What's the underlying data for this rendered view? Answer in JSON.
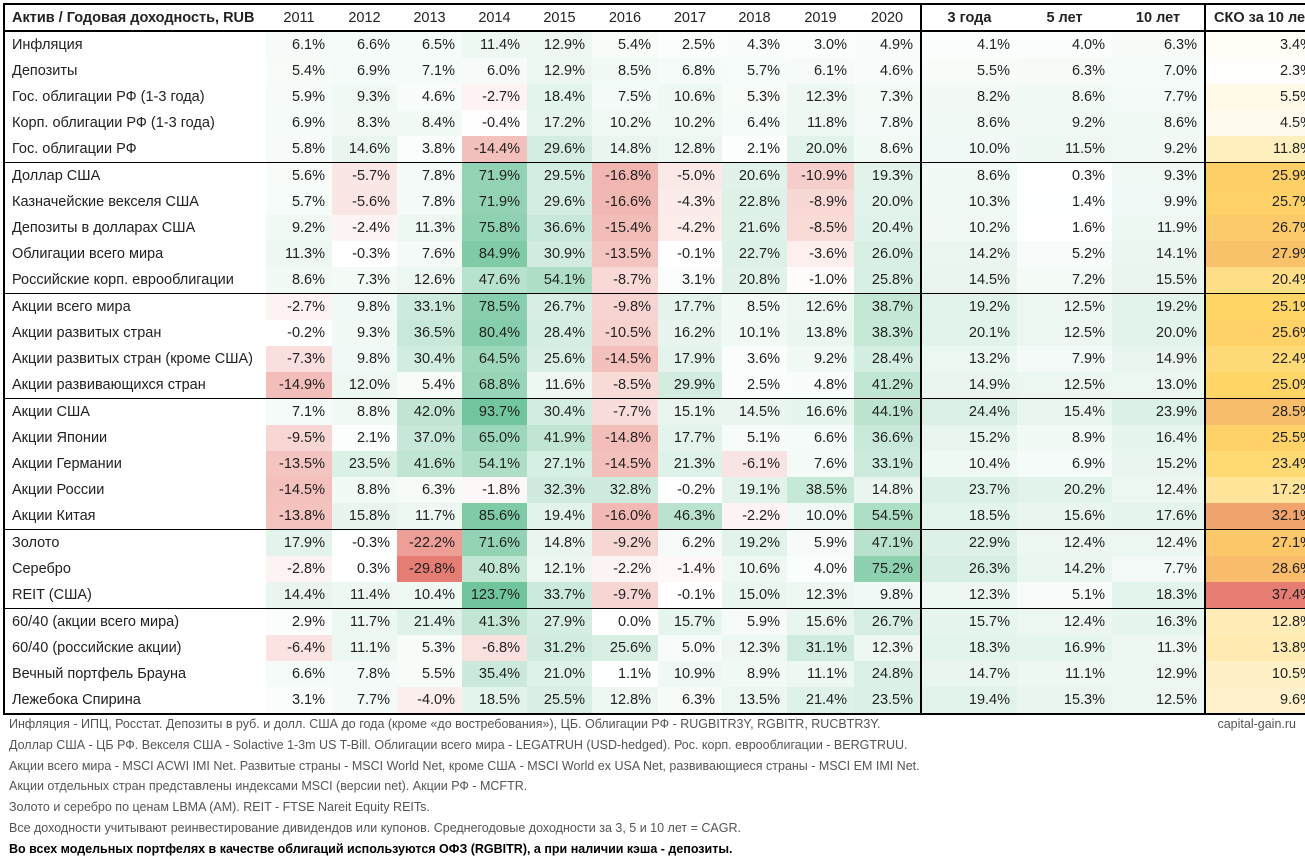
{
  "header": {
    "asset": "Актив / Годовая доходность, RUB",
    "years": [
      "2011",
      "2012",
      "2013",
      "2014",
      "2015",
      "2016",
      "2017",
      "2018",
      "2019",
      "2020"
    ],
    "avg": [
      "3 года",
      "5 лет",
      "10 лет"
    ],
    "std": "СКО за 10 лет"
  },
  "groups": [
    [
      {
        "name": "Инфляция",
        "vals": [
          6.1,
          6.6,
          6.5,
          11.4,
          12.9,
          5.4,
          2.5,
          4.3,
          3.0,
          4.9
        ],
        "avg": [
          4.1,
          4.0,
          6.3
        ],
        "std": 3.4
      },
      {
        "name": "Депозиты",
        "vals": [
          5.4,
          6.9,
          7.1,
          6.0,
          12.9,
          8.5,
          6.8,
          5.7,
          6.1,
          4.6
        ],
        "avg": [
          5.5,
          6.3,
          7.0
        ],
        "std": 2.3
      },
      {
        "name": "Гос. облигации РФ (1-3 года)",
        "vals": [
          5.9,
          9.3,
          4.6,
          -2.7,
          18.4,
          7.5,
          10.6,
          5.3,
          12.3,
          7.3
        ],
        "avg": [
          8.2,
          8.6,
          7.7
        ],
        "std": 5.5
      },
      {
        "name": "Корп. облигации РФ (1-3 года)",
        "vals": [
          6.9,
          8.3,
          8.4,
          -0.4,
          17.2,
          10.2,
          10.2,
          6.4,
          11.8,
          7.8
        ],
        "avg": [
          8.6,
          9.2,
          8.6
        ],
        "std": 4.5
      },
      {
        "name": "Гос. облигации РФ",
        "vals": [
          5.8,
          14.6,
          3.8,
          -14.4,
          29.6,
          14.8,
          12.8,
          2.1,
          20.0,
          8.6
        ],
        "avg": [
          10.0,
          11.5,
          9.2
        ],
        "std": 11.8
      }
    ],
    [
      {
        "name": "Доллар США",
        "vals": [
          5.6,
          -5.7,
          7.8,
          71.9,
          29.5,
          -16.8,
          -5.0,
          20.6,
          -10.9,
          19.3
        ],
        "avg": [
          8.6,
          0.3,
          9.3
        ],
        "std": 25.9
      },
      {
        "name": "Казначейские векселя США",
        "vals": [
          5.7,
          -5.6,
          7.8,
          71.9,
          29.6,
          -16.6,
          -4.3,
          22.8,
          -8.9,
          20.0
        ],
        "avg": [
          10.3,
          1.4,
          9.9
        ],
        "std": 25.7
      },
      {
        "name": "Депозиты в долларах США",
        "vals": [
          9.2,
          -2.4,
          11.3,
          75.8,
          36.6,
          -15.4,
          -4.2,
          21.6,
          -8.5,
          20.4
        ],
        "avg": [
          10.2,
          1.6,
          11.9
        ],
        "std": 26.7
      },
      {
        "name": "Облигации всего мира",
        "vals": [
          11.3,
          -0.3,
          7.6,
          84.9,
          30.9,
          -13.5,
          -0.1,
          22.7,
          -3.6,
          26.0
        ],
        "avg": [
          14.2,
          5.2,
          14.1
        ],
        "std": 27.9
      },
      {
        "name": "Российские корп. еврооблигации",
        "vals": [
          8.6,
          7.3,
          12.6,
          47.6,
          54.1,
          -8.7,
          3.1,
          20.8,
          -1.0,
          25.8
        ],
        "avg": [
          14.5,
          7.2,
          15.5
        ],
        "std": 20.4
      }
    ],
    [
      {
        "name": "Акции всего мира",
        "vals": [
          -2.7,
          9.8,
          33.1,
          78.5,
          26.7,
          -9.8,
          17.7,
          8.5,
          12.6,
          38.7
        ],
        "avg": [
          19.2,
          12.5,
          19.2
        ],
        "std": 25.1
      },
      {
        "name": "Акции развитых стран",
        "vals": [
          -0.2,
          9.3,
          36.5,
          80.4,
          28.4,
          -10.5,
          16.2,
          10.1,
          13.8,
          38.3
        ],
        "avg": [
          20.1,
          12.5,
          20.0
        ],
        "std": 25.6
      },
      {
        "name": "Акции развитых стран (кроме США)",
        "vals": [
          -7.3,
          9.8,
          30.4,
          64.5,
          25.6,
          -14.5,
          17.9,
          3.6,
          9.2,
          28.4
        ],
        "avg": [
          13.2,
          7.9,
          14.9
        ],
        "std": 22.4
      },
      {
        "name": "Акции развивающихся стран",
        "vals": [
          -14.9,
          12.0,
          5.4,
          68.8,
          11.6,
          -8.5,
          29.9,
          2.5,
          4.8,
          41.2
        ],
        "avg": [
          14.9,
          12.5,
          13.0
        ],
        "std": 25.0
      }
    ],
    [
      {
        "name": "Акции США",
        "vals": [
          7.1,
          8.8,
          42.0,
          93.7,
          30.4,
          -7.7,
          15.1,
          14.5,
          16.6,
          44.1
        ],
        "avg": [
          24.4,
          15.4,
          23.9
        ],
        "std": 28.5
      },
      {
        "name": "Акции Японии",
        "vals": [
          -9.5,
          2.1,
          37.0,
          65.0,
          41.9,
          -14.8,
          17.7,
          5.1,
          6.6,
          36.6
        ],
        "avg": [
          15.2,
          8.9,
          16.4
        ],
        "std": 25.5
      },
      {
        "name": "Акции Германии",
        "vals": [
          -13.5,
          23.5,
          41.6,
          54.1,
          27.1,
          -14.5,
          21.3,
          -6.1,
          7.6,
          33.1
        ],
        "avg": [
          10.4,
          6.9,
          15.2
        ],
        "std": 23.4
      },
      {
        "name": "Акции России",
        "vals": [
          -14.5,
          8.8,
          6.3,
          -1.8,
          32.3,
          32.8,
          -0.2,
          19.1,
          38.5,
          14.8
        ],
        "avg": [
          23.7,
          20.2,
          12.4
        ],
        "std": 17.2
      },
      {
        "name": "Акции Китая",
        "vals": [
          -13.8,
          15.8,
          11.7,
          85.6,
          19.4,
          -16.0,
          46.3,
          -2.2,
          10.0,
          54.5
        ],
        "avg": [
          18.5,
          15.6,
          17.6
        ],
        "std": 32.1
      }
    ],
    [
      {
        "name": "Золото",
        "vals": [
          17.9,
          -0.3,
          -22.2,
          71.6,
          14.8,
          -9.2,
          6.2,
          19.2,
          5.9,
          47.1
        ],
        "avg": [
          22.9,
          12.4,
          12.4
        ],
        "std": 27.1
      },
      {
        "name": "Серебро",
        "vals": [
          -2.8,
          0.3,
          -29.8,
          40.8,
          12.1,
          -2.2,
          -1.4,
          10.6,
          4.0,
          75.2
        ],
        "avg": [
          26.3,
          14.2,
          7.7
        ],
        "std": 28.6
      },
      {
        "name": "REIT (США)",
        "vals": [
          14.4,
          11.4,
          10.4,
          123.7,
          33.7,
          -9.7,
          -0.1,
          15.0,
          12.3,
          9.8
        ],
        "avg": [
          12.3,
          5.1,
          18.3
        ],
        "std": 37.4
      }
    ],
    [
      {
        "name": "60/40 (акции всего мира)",
        "vals": [
          2.9,
          11.7,
          21.4,
          41.3,
          27.9,
          0.0,
          15.7,
          5.9,
          15.6,
          26.7
        ],
        "avg": [
          15.7,
          12.4,
          16.3
        ],
        "std": 12.8
      },
      {
        "name": "60/40 (российские акции)",
        "vals": [
          -6.4,
          11.1,
          5.3,
          -6.8,
          31.2,
          25.6,
          5.0,
          12.3,
          31.1,
          12.3
        ],
        "avg": [
          18.3,
          16.9,
          11.3
        ],
        "std": 13.8
      },
      {
        "name": "Вечный портфель Брауна",
        "vals": [
          6.6,
          7.8,
          5.5,
          35.4,
          21.0,
          1.1,
          10.9,
          8.9,
          11.1,
          24.8
        ],
        "avg": [
          14.7,
          11.1,
          12.9
        ],
        "std": 10.5
      },
      {
        "name": "Лежебока Спирина",
        "vals": [
          3.1,
          7.7,
          -4.0,
          18.5,
          25.5,
          12.8,
          6.3,
          13.5,
          21.4,
          23.5
        ],
        "avg": [
          19.4,
          15.3,
          12.5
        ],
        "std": 9.6
      }
    ]
  ],
  "notes": [
    "Инфляция - ИПЦ, Росстат. Депозиты в руб. и долл. США до года (кроме «до востребования»), ЦБ. Облигации РФ - RUGBITR3Y, RGBITR, RUCBTR3Y.",
    "Доллар США - ЦБ РФ. Векселя США - Solactive 1-3m US T-Bill. Облигации всего мира - LEGATRUH (USD-hedged). Рос. корп. еврооблигации - BERGTRUU.",
    "Акции всего мира - MSCI ACWI IMI Net. Развитые страны - MSCI World Net, кроме США - MSCI World ex USA Net, развивающиеся страны - MSCI EM IMI Net.",
    "Акции отдельных стран представлены индексами MSCI (версии net). Акции РФ - MCFTR.",
    "Золото и серебро по ценам LBMA (AM). REIT - FTSE Nareit Equity REITs.",
    "Все доходности учитывают реинвестирование дивидендов или купонов. Среднегодовые доходности за 3, 5 и 10 лет = CAGR."
  ],
  "note_bold": "Во всех модельных портфелях в качестве облигаций используются ОФЗ (RGBITR), а при наличии кэша - депозиты.",
  "site": "capital-gain.ru",
  "colors": {
    "neutral": "#ffffff",
    "positive": "#57bb8a",
    "negative": "#e67c73",
    "std_low": "#ffffff",
    "std_mid": "#ffd666",
    "std_high": "#e67c73"
  }
}
